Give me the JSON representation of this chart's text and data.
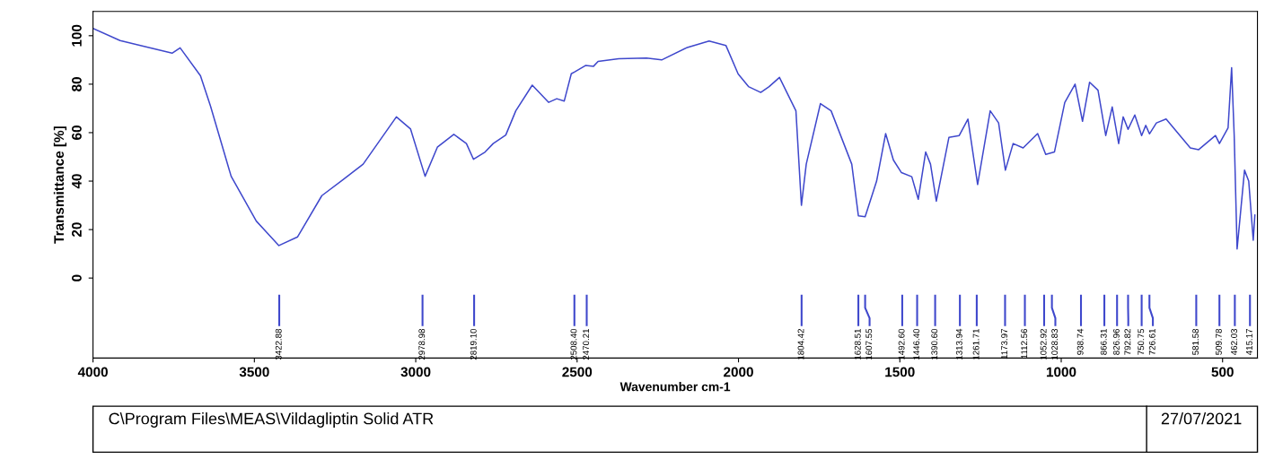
{
  "chart_data": {
    "type": "line",
    "xlabel": "Wavenumber cm-1",
    "ylabel": "Transmittance [%]",
    "xlim": [
      4000,
      392
    ],
    "ylim": [
      -33,
      110
    ],
    "xticks": [
      4000,
      3500,
      3000,
      2500,
      2000,
      1500,
      1000,
      500
    ],
    "yticks": [
      0,
      20,
      40,
      60,
      80,
      100
    ],
    "grid": false,
    "legend": false,
    "marker": "none",
    "line_style": "solid",
    "series": [
      {
        "color": "#3f48cc",
        "x": [
          4000,
          3916,
          3853,
          3755,
          3730,
          3667,
          3636,
          3572,
          3494,
          3424,
          3366,
          3291,
          3227,
          3163,
          3060,
          3016,
          2971,
          2933,
          2882,
          2843,
          2821,
          2785,
          2760,
          2721,
          2690,
          2639,
          2588,
          2563,
          2540,
          2518,
          2508.4,
          2474,
          2449,
          2435,
          2371,
          2285,
          2238,
          2161,
          2091,
          2039,
          2001,
          1969,
          1931,
          1905,
          1873,
          1822,
          1805,
          1790,
          1746,
          1713,
          1649,
          1628.5,
          1607.5,
          1572,
          1544,
          1520,
          1495,
          1463,
          1443,
          1420,
          1405,
          1387,
          1348,
          1316,
          1289,
          1259,
          1220,
          1194,
          1173,
          1149,
          1118,
          1073,
          1048,
          1021,
          989,
          957,
          934,
          912,
          886,
          862,
          842,
          822,
          808,
          792.8,
          772,
          750.8,
          738,
          726.6,
          705,
          675,
          600,
          574,
          522,
          509.8,
          483,
          472,
          464,
          455,
          432,
          419,
          405,
          400
        ],
        "values": [
          103,
          98,
          96,
          92.8,
          95,
          83.5,
          71,
          42,
          23.5,
          13.4,
          17,
          34,
          40.4,
          47,
          66.5,
          61.5,
          42,
          54,
          59.3,
          55.5,
          49,
          52,
          55.5,
          59,
          69,
          79.6,
          72.5,
          74,
          73,
          84.3,
          85,
          87.7,
          87.4,
          89.4,
          90.5,
          90.8,
          90,
          95,
          97.8,
          96,
          84.2,
          79,
          76.6,
          79,
          82.8,
          69,
          30,
          47,
          72,
          69,
          47,
          25.7,
          25.3,
          40,
          59.6,
          48.7,
          43.5,
          41.8,
          32.5,
          52,
          47,
          31.7,
          58,
          58.8,
          65.6,
          38.6,
          69,
          64,
          44.5,
          55.5,
          53.7,
          59.6,
          51,
          52,
          72.4,
          80,
          64.7,
          80.8,
          77.5,
          58.8,
          70.6,
          55.5,
          66.5,
          61.4,
          67.3,
          58.8,
          63,
          59.5,
          64,
          65.6,
          53.7,
          53,
          58.8,
          55.5,
          62,
          86.8,
          58.8,
          12,
          44.5,
          40,
          15.6,
          26
        ]
      }
    ],
    "annotations": [
      {
        "text": "3422.88",
        "x": 3422.88
      },
      {
        "text": "2978.98",
        "x": 2978.98
      },
      {
        "text": "2819.10",
        "x": 2819.1
      },
      {
        "text": "2508.40",
        "x": 2508.4
      },
      {
        "text": "2470.21",
        "x": 2470.21
      },
      {
        "text": "1804.42",
        "x": 1804.42
      },
      {
        "text": "1628.51",
        "x": 1628.51
      },
      {
        "text": "1607.55",
        "x": 1607.55
      },
      {
        "text": "1492.60",
        "x": 1492.6
      },
      {
        "text": "1446.40",
        "x": 1446.4
      },
      {
        "text": "1390.60",
        "x": 1390.6
      },
      {
        "text": "1313.94",
        "x": 1313.94
      },
      {
        "text": "1261.71",
        "x": 1261.71
      },
      {
        "text": "1173.97",
        "x": 1173.97
      },
      {
        "text": "1112.56",
        "x": 1112.56
      },
      {
        "text": "1052.92",
        "x": 1052.92
      },
      {
        "text": "1028.83",
        "x": 1028.83
      },
      {
        "text": "938.74",
        "x": 938.74
      },
      {
        "text": "866.31",
        "x": 866.31
      },
      {
        "text": "826.96",
        "x": 826.96
      },
      {
        "text": "792.82",
        "x": 792.82
      },
      {
        "text": "750.75",
        "x": 750.75
      },
      {
        "text": "726.61",
        "x": 726.61
      },
      {
        "text": "581.58",
        "x": 581.58
      },
      {
        "text": "509.78",
        "x": 509.78
      },
      {
        "text": "462.03",
        "x": 462.03
      },
      {
        "text": "415.17",
        "x": 415.17
      },
      "C\\Program Files\\MEAS\\Vildagliptin Solid ATR",
      "27/07/2021"
    ]
  }
}
